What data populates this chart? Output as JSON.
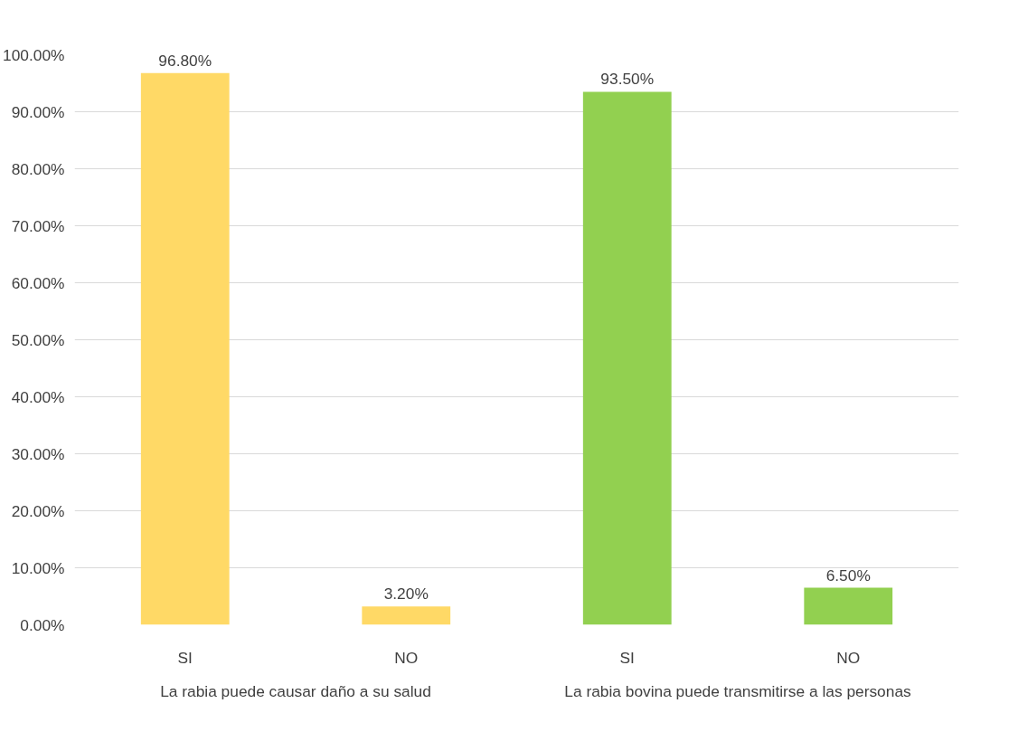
{
  "chart_data": {
    "type": "bar",
    "categories": [
      "SI",
      "NO",
      "SI",
      "NO"
    ],
    "values": [
      96.8,
      3.2,
      93.5,
      6.5
    ],
    "colors": [
      "#ffd966",
      "#ffd966",
      "#92d050",
      "#92d050"
    ],
    "value_labels": [
      "96.80%",
      "3.20%",
      "93.50%",
      "6.50%"
    ],
    "ylim": [
      0,
      100
    ],
    "yticks": [
      {
        "value": 0,
        "label": "0.00%"
      },
      {
        "value": 10,
        "label": "10.00%"
      },
      {
        "value": 20,
        "label": "20.00%"
      },
      {
        "value": 30,
        "label": "30.00%"
      },
      {
        "value": 40,
        "label": "40.00%"
      },
      {
        "value": 50,
        "label": "50.00%"
      },
      {
        "value": 60,
        "label": "60.00%"
      },
      {
        "value": 70,
        "label": "70.00%"
      },
      {
        "value": 80,
        "label": "80.00%"
      },
      {
        "value": 90,
        "label": "90.00%"
      },
      {
        "value": 100,
        "label": "100.00%"
      }
    ],
    "grid": "y",
    "annotations": [
      "La rabia puede causar daño a su salud",
      "La rabia bovina puede transmitirse a las personas"
    ]
  }
}
